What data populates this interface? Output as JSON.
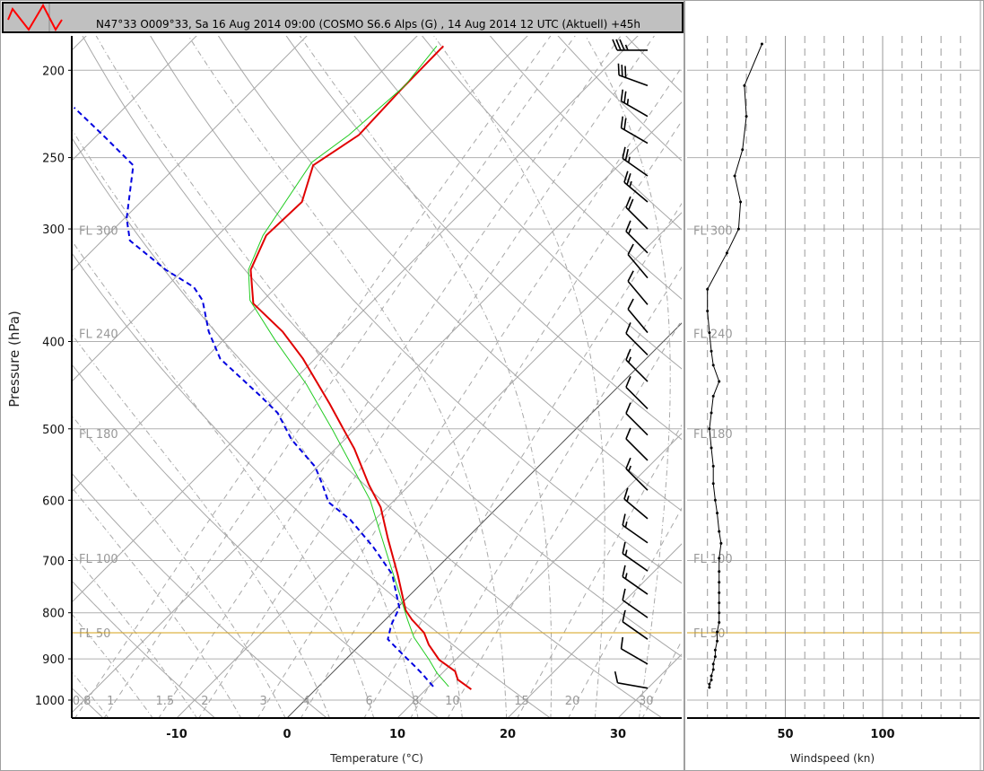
{
  "header": {
    "title": "N47°33 O009°33, Sa 16 Aug 2014 09:00 (COSMO  S6.6  Alps (G) , 14 Aug 2014 12 UTC (Aktuell) +45h"
  },
  "colors": {
    "temperature": "#e00000",
    "dewpoint": "#22cc22",
    "wetbulb": "#0000e0",
    "fl50_line": "#d4a017",
    "grid": "#a8a8a8",
    "logo": "#ff0000"
  },
  "icons": {
    "logo": "red-zigzag-logo"
  },
  "chart_data": [
    {
      "type": "skew-t",
      "xlabel": "Temperature (°C)",
      "ylabel": "Pressure (hPa)",
      "x_ticks": [
        -10,
        0,
        10,
        20,
        30
      ],
      "y_ticks": [
        200,
        250,
        300,
        400,
        500,
        600,
        700,
        800,
        900,
        1000
      ],
      "y_scale": "log",
      "ylim": [
        1047,
        183
      ],
      "grid": true,
      "flight_levels": [
        {
          "label": "FL 300",
          "p": 301
        },
        {
          "label": "FL 240",
          "p": 392
        },
        {
          "label": "FL 180",
          "p": 506
        },
        {
          "label": "FL 100",
          "p": 696
        },
        {
          "label": "FL 50",
          "p": 842
        }
      ],
      "mixing_ratio_labels": [
        "0.8",
        "1",
        "1.5",
        "2",
        "3",
        "4",
        "6",
        "8",
        "10",
        "15",
        "20",
        "30"
      ],
      "series": [
        {
          "key": "temperature",
          "points": [
            [
              973,
              14.1
            ],
            [
              949,
              12.0
            ],
            [
              929,
              11.0
            ],
            [
              902,
              8.5
            ],
            [
              868,
              6.2
            ],
            [
              842,
              4.7
            ],
            [
              814,
              2.4
            ],
            [
              795,
              1.0
            ],
            [
              768,
              -0.5
            ],
            [
              725,
              -3.0
            ],
            [
              662,
              -7.1
            ],
            [
              611,
              -10.6
            ],
            [
              577,
              -13.7
            ],
            [
              526,
              -18.3
            ],
            [
              500,
              -21.1
            ],
            [
              469,
              -24.6
            ],
            [
              418,
              -31.1
            ],
            [
              390,
              -35.4
            ],
            [
              363,
              -40.6
            ],
            [
              333,
              -43.9
            ],
            [
              305,
              -45.6
            ],
            [
              280,
              -45.4
            ],
            [
              255,
              -47.7
            ],
            [
              236,
              -46.3
            ],
            [
              210,
              -46.6
            ],
            [
              188,
              -46.7
            ]
          ]
        },
        {
          "key": "dewpoint",
          "points": [
            [
              966,
              11.8
            ],
            [
              933,
              9.5
            ],
            [
              902,
              7.6
            ],
            [
              852,
              4.2
            ],
            [
              814,
              2.0
            ],
            [
              763,
              -1.0
            ],
            [
              699,
              -5.1
            ],
            [
              600,
              -12.2
            ],
            [
              502,
              -21.9
            ],
            [
              446,
              -28.5
            ],
            [
              398,
              -35.4
            ],
            [
              360,
              -41.2
            ],
            [
              333,
              -44.1
            ],
            [
              305,
              -45.9
            ],
            [
              253,
              -48.1
            ],
            [
              236,
              -47.2
            ],
            [
              208,
              -46.6
            ],
            [
              188,
              -47.3
            ]
          ]
        },
        {
          "key": "wetbulb",
          "points": [
            [
              966,
              10.4
            ],
            [
              933,
              8.1
            ],
            [
              916,
              6.8
            ],
            [
              887,
              4.5
            ],
            [
              856,
              2.0
            ],
            [
              825,
              1.0
            ],
            [
              790,
              0.2
            ],
            [
              725,
              -3.5
            ],
            [
              676,
              -7.7
            ],
            [
              631,
              -12.2
            ],
            [
              603,
              -15.8
            ],
            [
              577,
              -17.9
            ],
            [
              551,
              -20.2
            ],
            [
              514,
              -24.8
            ],
            [
              480,
              -28.5
            ],
            [
              459,
              -31.7
            ],
            [
              418,
              -38.6
            ],
            [
              390,
              -42.1
            ],
            [
              360,
              -45.5
            ],
            [
              348,
              -47.5
            ],
            [
              333,
              -51.6
            ],
            [
              309,
              -57.5
            ],
            [
              292,
              -59.8
            ],
            [
              255,
              -64
            ],
            [
              238,
              -68.9
            ],
            [
              220,
              -74.6
            ]
          ]
        }
      ],
      "wind_barbs": [
        [
          970,
          280,
          11
        ],
        [
          912,
          300,
          12
        ],
        [
          856,
          305,
          13
        ],
        [
          810,
          305,
          14
        ],
        [
          763,
          305,
          15
        ],
        [
          719,
          305,
          16
        ],
        [
          669,
          305,
          17
        ],
        [
          629,
          310,
          16
        ],
        [
          585,
          315,
          15
        ],
        [
          542,
          315,
          13
        ],
        [
          508,
          315,
          12
        ],
        [
          475,
          315,
          14
        ],
        [
          443,
          315,
          16
        ],
        [
          414,
          315,
          14
        ],
        [
          391,
          320,
          12
        ],
        [
          364,
          320,
          10
        ],
        [
          340,
          320,
          12
        ],
        [
          319,
          315,
          18
        ],
        [
          300,
          315,
          22
        ],
        [
          280,
          310,
          28
        ],
        [
          262,
          305,
          27
        ],
        [
          241,
          300,
          24
        ],
        [
          225,
          300,
          26
        ],
        [
          208,
          290,
          30
        ],
        [
          190,
          270,
          35
        ]
      ]
    },
    {
      "type": "line",
      "xlabel": "Windspeed (kn)",
      "x_ticks": [
        50,
        100
      ],
      "xlim": [
        0,
        150
      ],
      "grid": true,
      "flight_levels": [
        "FL 300",
        "FL 240",
        "FL 180",
        "FL 100",
        "FL 50"
      ],
      "points": [
        [
          968,
          11
        ],
        [
          960,
          11
        ],
        [
          950,
          12
        ],
        [
          940,
          12
        ],
        [
          925,
          13
        ],
        [
          912,
          13
        ],
        [
          895,
          14
        ],
        [
          880,
          14
        ],
        [
          860,
          15
        ],
        [
          840,
          15
        ],
        [
          820,
          16
        ],
        [
          800,
          16
        ],
        [
          780,
          16
        ],
        [
          760,
          16
        ],
        [
          740,
          16
        ],
        [
          720,
          16
        ],
        [
          696,
          16
        ],
        [
          670,
          17
        ],
        [
          650,
          16
        ],
        [
          620,
          15
        ],
        [
          600,
          14
        ],
        [
          575,
          13
        ],
        [
          550,
          13
        ],
        [
          525,
          12
        ],
        [
          500,
          11
        ],
        [
          480,
          12
        ],
        [
          460,
          13
        ],
        [
          443,
          16
        ],
        [
          425,
          13
        ],
        [
          410,
          12
        ],
        [
          391,
          11
        ],
        [
          370,
          10
        ],
        [
          350,
          10
        ],
        [
          319,
          20
        ],
        [
          300,
          26
        ],
        [
          280,
          27
        ],
        [
          262,
          24
        ],
        [
          245,
          28
        ],
        [
          225,
          30
        ],
        [
          208,
          29
        ],
        [
          187,
          38
        ]
      ]
    }
  ]
}
